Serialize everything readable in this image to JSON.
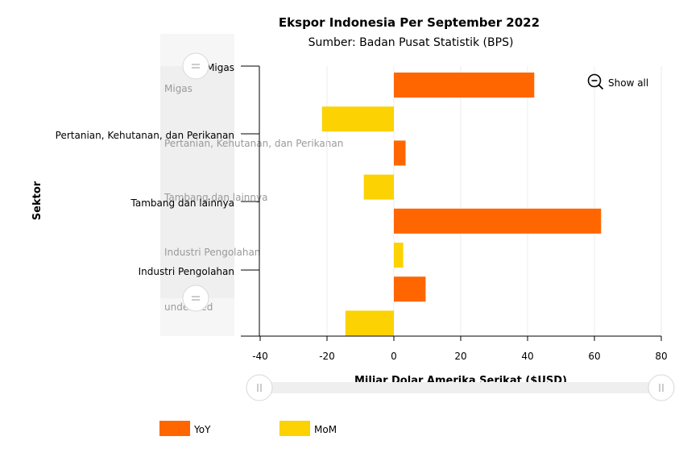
{
  "chart_data": {
    "type": "bar",
    "orientation": "horizontal",
    "title": "Ekspor Indonesia Per September 2022",
    "subtitle": "Sumber: Badan Pusat Statistik (BPS)",
    "xlabel": "Miliar Dolar Amerika Serikat ($USD)",
    "ylabel": "Sektor",
    "xlim": [
      -45,
      80
    ],
    "x_ticks": [
      "-40",
      "-20",
      "0",
      "20",
      "40",
      "60",
      "80"
    ],
    "categories": [
      "Migas",
      "Pertanian, Kehutanan, dan Perikanan",
      "Tambang dan lainnya",
      "Industri Pengolahan"
    ],
    "series": [
      {
        "name": "YoY",
        "color": "#ff6600",
        "values": [
          42,
          3.5,
          62,
          9.5
        ]
      },
      {
        "name": "MoM",
        "color": "#fcd202",
        "values": [
          -21.5,
          -9,
          2.8,
          -14.5
        ]
      }
    ],
    "bar_order": [
      {
        "series": 0,
        "cat": 0
      },
      {
        "series": 1,
        "cat": 0
      },
      {
        "series": 0,
        "cat": 1
      },
      {
        "series": 1,
        "cat": 1
      },
      {
        "series": 0,
        "cat": 2
      },
      {
        "series": 1,
        "cat": 2
      },
      {
        "series": 0,
        "cat": 3
      },
      {
        "series": 1,
        "cat": 3
      }
    ],
    "scrollbar_labels": [
      "Migas",
      "Pertanian, Kehutanan, dan Perikanan",
      "Tambang dan lainnya",
      "Industri Pengolahan",
      "undefined"
    ],
    "grid": true,
    "legend_position": "bottom-left"
  },
  "zoom": {
    "show_all_label": "Show all",
    "icon": "zoom-out-icon"
  },
  "scrollbar_handle_icon": "grip-icon"
}
